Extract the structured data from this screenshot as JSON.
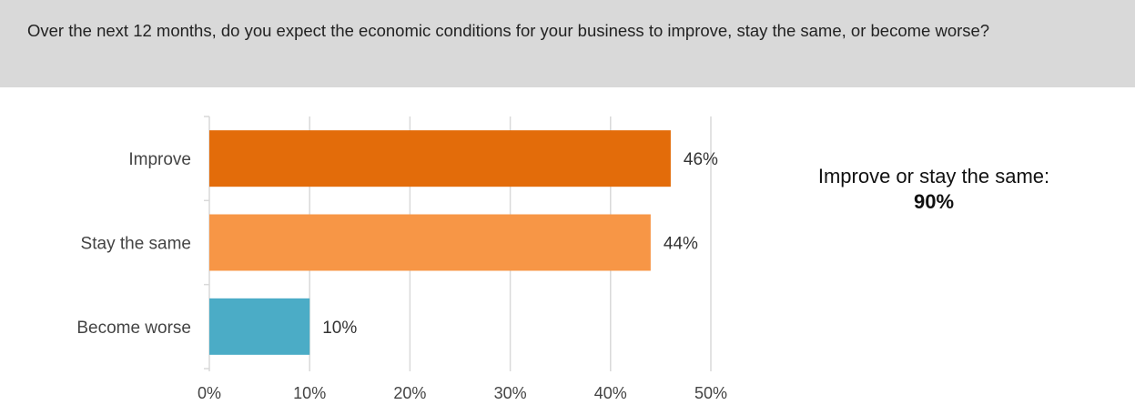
{
  "question": "Over the next 12 months, do you expect the economic conditions for your business to improve, stay the same, or become worse?",
  "callout": {
    "label": "Improve or stay the same:",
    "value": "90%"
  },
  "colors": {
    "improve": "#e36c0a",
    "stay_the_same": "#f79646",
    "become_worse": "#4bacc6",
    "banner": "#d9d9d9",
    "gridline": "#d9d9d9"
  },
  "chart_data": {
    "type": "bar",
    "orientation": "horizontal",
    "categories": [
      "Improve",
      "Stay the same",
      "Become worse"
    ],
    "values": [
      46,
      44,
      10
    ],
    "data_labels": [
      "46%",
      "44%",
      "10%"
    ],
    "xlim": [
      0,
      50
    ],
    "x_ticks": [
      0,
      10,
      20,
      30,
      40,
      50
    ],
    "x_tick_labels": [
      "0%",
      "10%",
      "20%",
      "30%",
      "40%",
      "50%"
    ],
    "grid": true,
    "legend": "none"
  }
}
